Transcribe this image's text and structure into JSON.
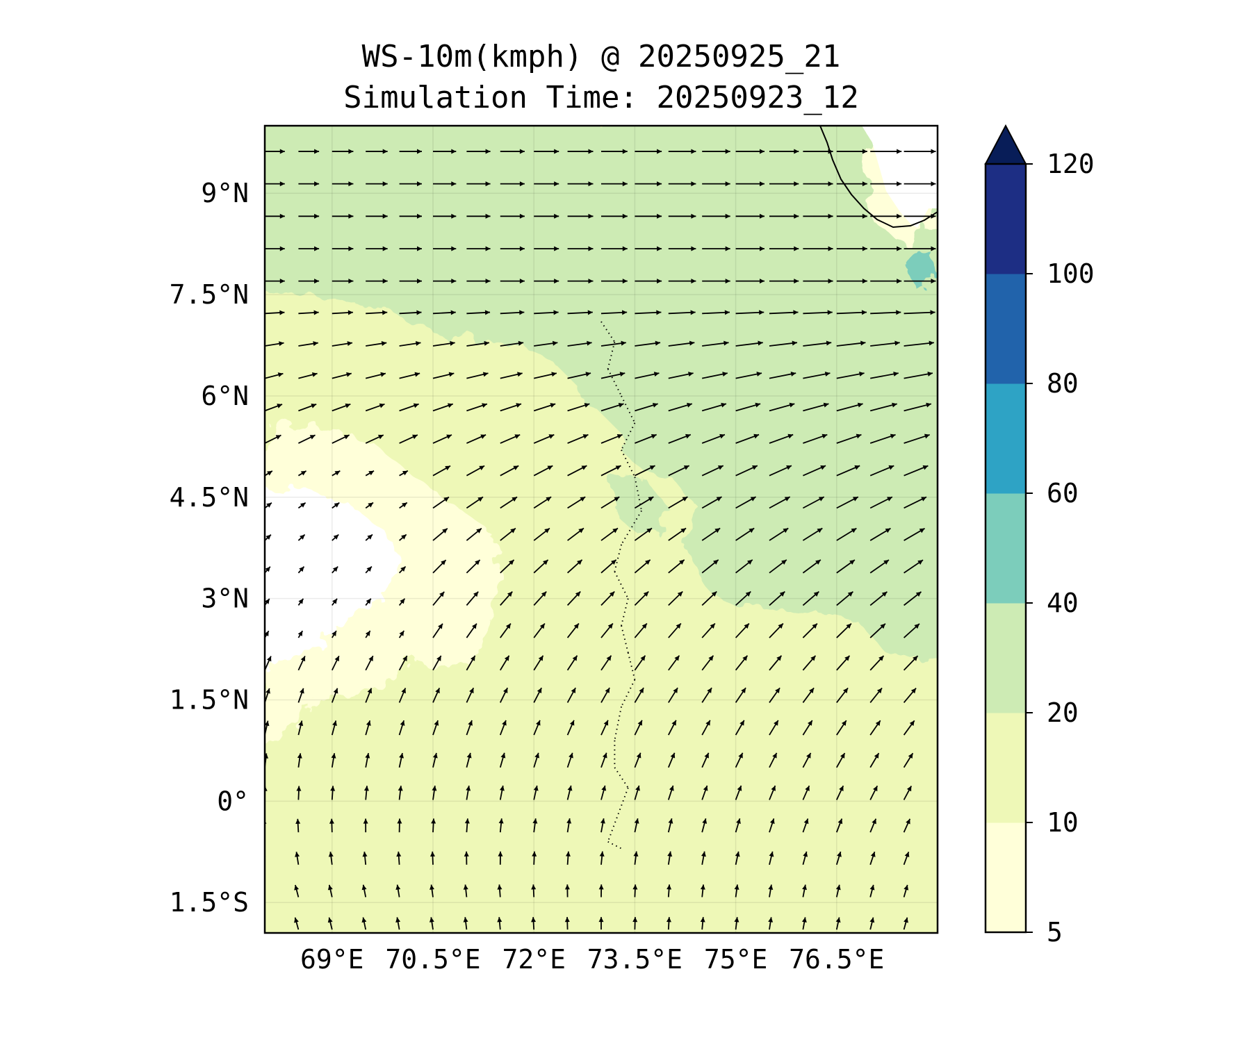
{
  "title_line1": "WS-10m(kmph) @ 20250925_21",
  "title_line2": "Simulation Time: 20250923_12",
  "map": {
    "lon_range": [
      68.0,
      78.0
    ],
    "lat_range": [
      -1.95,
      10.0
    ],
    "lat_ticks": [
      {
        "value": 9,
        "label": "9°N"
      },
      {
        "value": 7.5,
        "label": "7.5°N"
      },
      {
        "value": 6,
        "label": "6°N"
      },
      {
        "value": 4.5,
        "label": "4.5°N"
      },
      {
        "value": 3,
        "label": "3°N"
      },
      {
        "value": 1.5,
        "label": "1.5°N"
      },
      {
        "value": 0,
        "label": "0°"
      },
      {
        "value": -1.5,
        "label": "1.5°S"
      }
    ],
    "lon_ticks": [
      {
        "value": 69,
        "label": "69°E"
      },
      {
        "value": 70.5,
        "label": "70.5°E"
      },
      {
        "value": 72,
        "label": "72°E"
      },
      {
        "value": 73.5,
        "label": "73.5°E"
      },
      {
        "value": 75,
        "label": "75°E"
      },
      {
        "value": 76.5,
        "label": "76.5°E"
      }
    ],
    "gridlines": true,
    "wind_vectors": "quiver arrows, westerly in north turning southerly in south"
  },
  "colorbar": {
    "levels": [
      5,
      10,
      20,
      40,
      60,
      80,
      100,
      120
    ],
    "labels": [
      "5",
      "10",
      "20",
      "40",
      "60",
      "80",
      "100",
      "120"
    ],
    "colors": [
      "#ffffd9",
      "#eef8b7",
      "#cdebb4",
      "#7ccdbb",
      "#2ea3c5",
      "#2163ab",
      "#1d2e84"
    ],
    "extend_color": "#081d58",
    "extend": "max"
  },
  "land_color": "#ffffff",
  "coast_color": "#000000"
}
